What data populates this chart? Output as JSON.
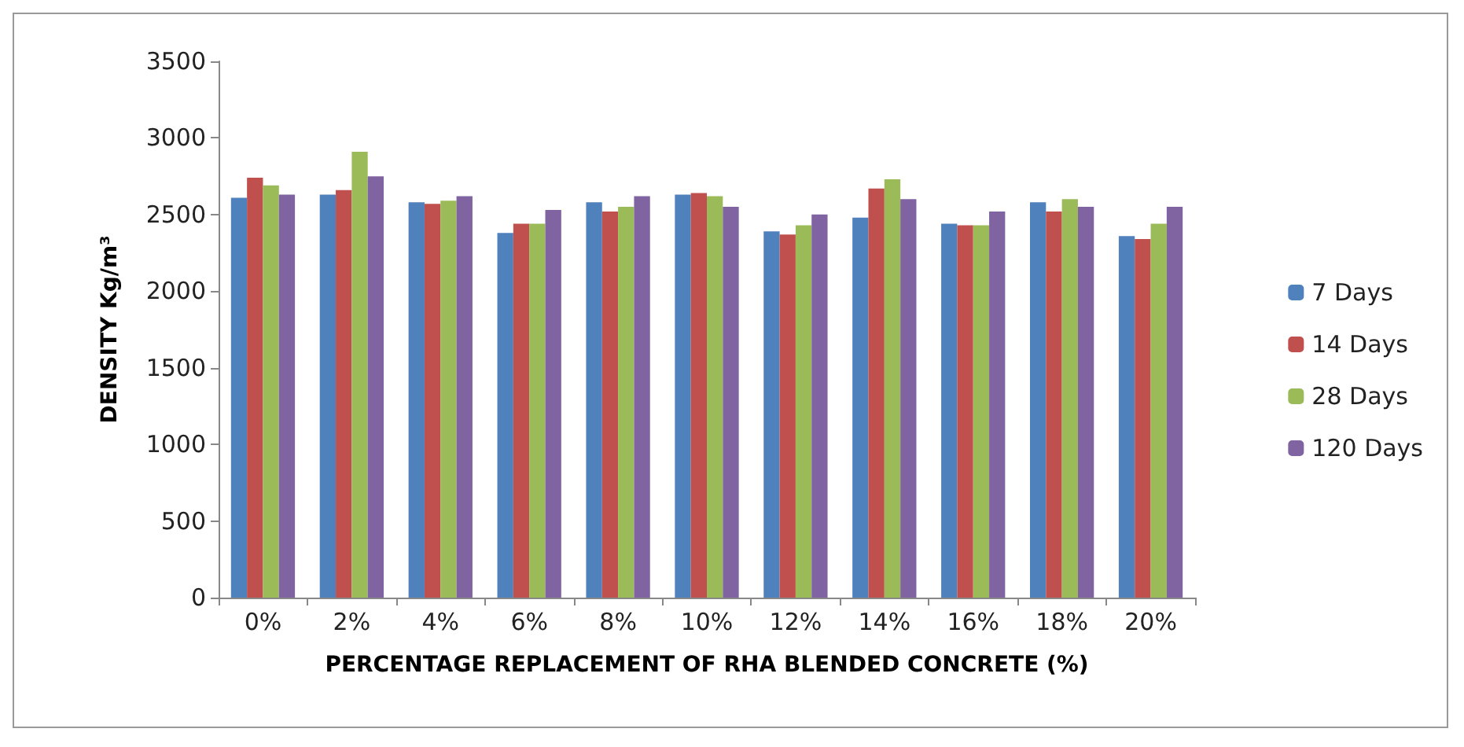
{
  "chart_data": {
    "type": "bar",
    "xlabel": "PERCENTAGE REPLACEMENT OF RHA BLENDED CONCRETE (%)",
    "ylabel": "DENSITY Kg/m³",
    "categories": [
      "0%",
      "2%",
      "4%",
      "6%",
      "8%",
      "10%",
      "12%",
      "14%",
      "16%",
      "18%",
      "20%"
    ],
    "series": [
      {
        "name": "7 Days",
        "color": "#4f81bd",
        "values": [
          2610,
          2630,
          2580,
          2380,
          2580,
          2630,
          2390,
          2480,
          2440,
          2580,
          2360
        ]
      },
      {
        "name": "14 Days",
        "color": "#c0504d",
        "values": [
          2740,
          2660,
          2570,
          2440,
          2520,
          2640,
          2370,
          2670,
          2430,
          2520,
          2340
        ]
      },
      {
        "name": "28 Days",
        "color": "#9bbb59",
        "values": [
          2690,
          2910,
          2590,
          2440,
          2550,
          2620,
          2430,
          2730,
          2430,
          2600,
          2440
        ]
      },
      {
        "name": "120 Days",
        "color": "#8064a2",
        "values": [
          2630,
          2750,
          2620,
          2530,
          2620,
          2550,
          2500,
          2600,
          2520,
          2550,
          2550
        ]
      }
    ],
    "ylim": [
      0,
      3500
    ],
    "yticks": [
      0,
      500,
      1000,
      1500,
      2000,
      2500,
      3000,
      3500
    ],
    "grid": false,
    "legend": "right"
  }
}
